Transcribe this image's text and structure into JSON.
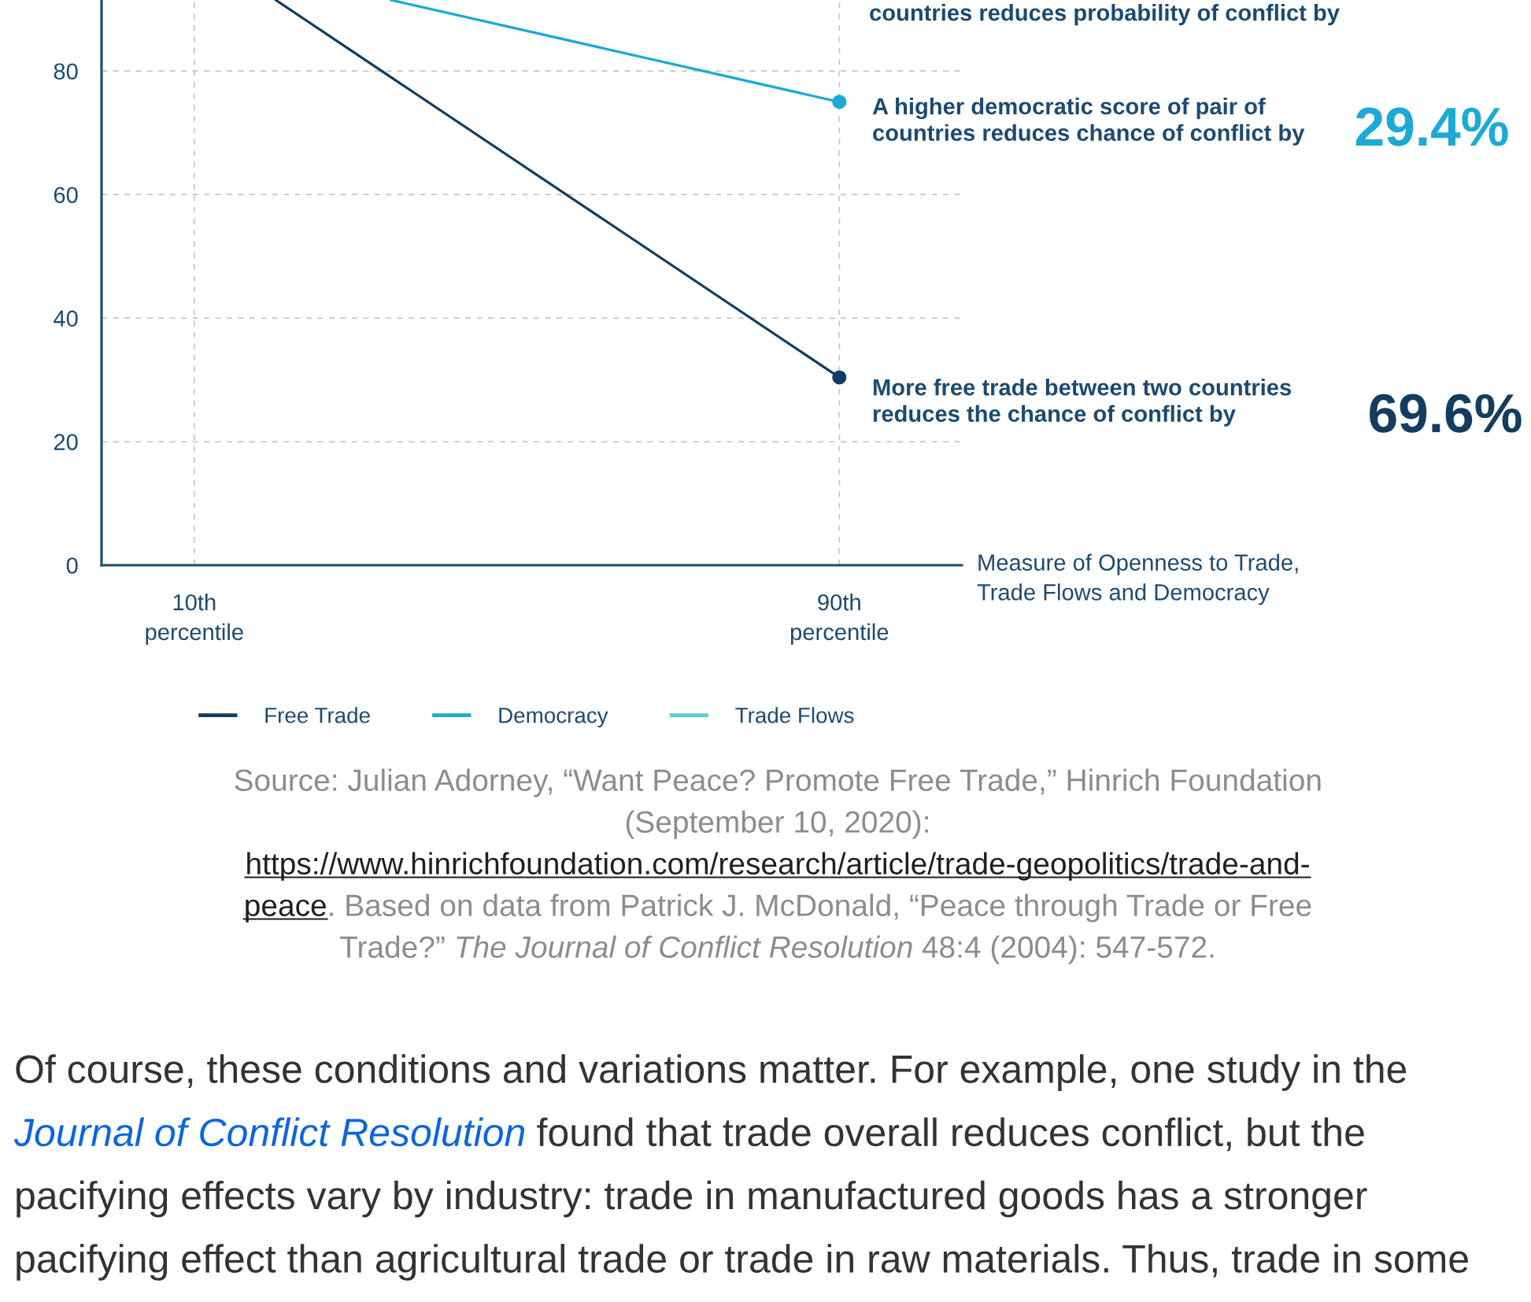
{
  "chart_data": {
    "type": "line",
    "xlabel": "Measure of Openness to Trade,\nTrade Flows and Democracy",
    "xlim": [
      -1.5,
      105.2
    ],
    "xticks": [
      {
        "value": 10,
        "label": "10th\npercentile"
      },
      {
        "value": 90,
        "label": "90th\npercentile"
      }
    ],
    "ylim": [
      0,
      91.5
    ],
    "yticks": [
      0,
      20,
      40,
      60,
      80
    ],
    "series": [
      {
        "name": "Free Trade",
        "color": "#123d5e",
        "x": [
          20.1,
          90
        ],
        "values": [
          91.5,
          30.4
        ]
      },
      {
        "name": "Democracy",
        "color": "#1aaad4",
        "x": [
          34.4,
          90
        ],
        "values": [
          91.5,
          75
        ]
      },
      {
        "name": "Trade Flows",
        "color": "#5ccfcf"
      }
    ],
    "marker": "circle",
    "line_style": "solid",
    "grid": true,
    "legend": "bottom",
    "annotations": [
      "A higher democratic score of pair of\ncountries reduces chance of conflict by",
      "29.4%",
      "More free trade between two countries\nreduces the chance of conflict by",
      "69.6%",
      "countries reduces probability of conflict by",
      "Source: Julian Adorney, “Want Peace? Promote Free Trade,” Hinrich Foundation",
      "(September 10, 2020):",
      "https://www.hinrichfoundation.com/research/article/trade-geopolitics/trade-and-",
      "peace",
      ". Based on data from Patrick J. McDonald, “Peace through Trade or Free",
      "Trade?”",
      " The Journal of Conflict Resolution",
      " 48:4 (2004): 547-572.",
      "Of course, these conditions and variations matter. For example, one study in the",
      "Journal of Conflict Resolution",
      " found that trade overall reduces conflict, but the",
      "pacifying effects vary by industry: trade in manufactured goods has a stronger",
      "pacifying effect than agricultural trade or trade in raw materials. Thus, trade in some"
    ]
  }
}
